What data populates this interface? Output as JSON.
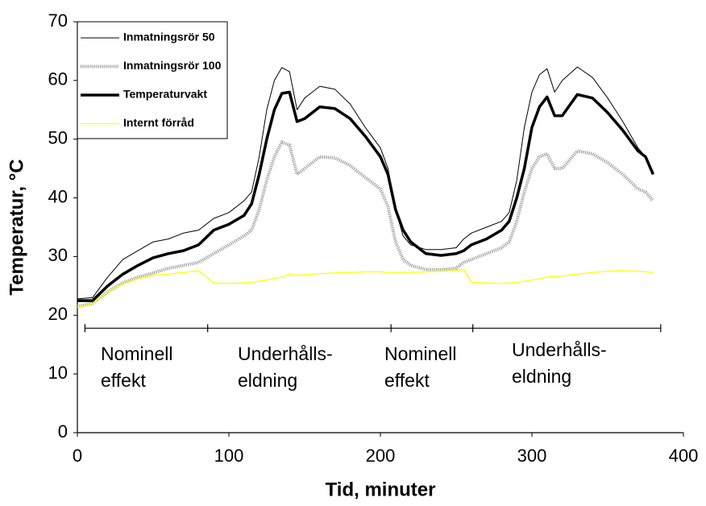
{
  "chart_data": {
    "type": "line",
    "x_label": "Tid, minuter",
    "y_label": "Temperatur, °C",
    "x": [
      0,
      10,
      20,
      30,
      40,
      50,
      60,
      70,
      80,
      90,
      100,
      110,
      115,
      120,
      125,
      130,
      135,
      140,
      145,
      150,
      160,
      170,
      180,
      190,
      200,
      205,
      210,
      215,
      220,
      230,
      240,
      250,
      255,
      260,
      270,
      280,
      285,
      290,
      295,
      300,
      305,
      310,
      315,
      320,
      330,
      340,
      350,
      360,
      370,
      375,
      380
    ],
    "series": [
      {
        "name": "Inmatningsrör 50",
        "color": "#000000",
        "values": [
          22.8,
          23,
          26.5,
          29.5,
          31,
          32.5,
          33,
          34,
          34.5,
          36.5,
          37.5,
          39.5,
          41,
          47,
          55,
          60,
          62.2,
          61.5,
          55,
          57,
          59,
          58.5,
          56,
          52,
          48.5,
          45,
          38,
          33.5,
          32,
          31.2,
          31.2,
          31.5,
          33,
          34,
          35,
          36,
          37.5,
          43,
          52,
          58,
          61,
          62,
          58,
          60,
          62.3,
          60.5,
          57,
          53,
          48.5,
          47,
          44.5
        ]
      },
      {
        "name": "Inmatningsrör 100",
        "color": "#a0a0a0",
        "values": [
          21.5,
          22,
          24,
          25.5,
          26.5,
          27.2,
          28,
          28.5,
          29,
          30.5,
          32,
          33.5,
          34.5,
          38,
          43,
          47,
          49.5,
          49,
          44,
          45,
          47,
          46.8,
          45.5,
          43.5,
          41.5,
          38.5,
          32.5,
          29.5,
          28.5,
          27.8,
          27.8,
          28,
          29,
          29.5,
          30.5,
          31.5,
          32.5,
          36,
          41,
          45,
          47,
          47.5,
          45,
          45,
          48,
          47.5,
          46,
          44,
          41.5,
          41,
          39.5
        ]
      },
      {
        "name": "Temperaturvakt",
        "color": "#000000",
        "values": [
          22.5,
          22.5,
          25,
          27,
          28.5,
          29.8,
          30.5,
          31,
          32,
          34.5,
          35.5,
          37,
          39,
          44,
          50,
          55,
          57.8,
          58,
          53,
          53.5,
          55.5,
          55.2,
          53.5,
          50.5,
          47,
          44,
          38,
          34.5,
          32.5,
          30.5,
          30.2,
          30.5,
          31,
          32,
          33,
          34.5,
          36,
          40,
          45,
          52,
          55.5,
          57.2,
          54,
          54,
          57.6,
          57,
          54.5,
          51.5,
          48,
          47,
          44
        ]
      },
      {
        "name": "Internt förråd",
        "color": "#ffff00",
        "values": [
          21.3,
          22,
          24,
          25.3,
          26.2,
          26.8,
          27,
          27.3,
          27.6,
          25.5,
          25.4,
          25.5,
          25.6,
          25.8,
          26,
          26.3,
          26.5,
          27,
          26.8,
          26.9,
          27.1,
          27.2,
          27.3,
          27.4,
          27.4,
          27.3,
          27.3,
          27.3,
          27.3,
          27.4,
          27.5,
          27.6,
          27.8,
          25.6,
          25.5,
          25.4,
          25.5,
          25.6,
          25.8,
          26,
          26.2,
          26.5,
          26.6,
          26.7,
          27,
          27.3,
          27.5,
          27.6,
          27.5,
          27.4,
          27.3
        ]
      }
    ],
    "xlim": [
      0,
      400
    ],
    "xticks": [
      0,
      100,
      200,
      300,
      400
    ],
    "ylim": [
      0,
      70
    ],
    "yticks": [
      0,
      10,
      20,
      30,
      40,
      50,
      60,
      70
    ],
    "legend": "upper left",
    "phase_boundaries": [
      5,
      86,
      207,
      261,
      385
    ],
    "phase_line_y": 17.8,
    "annotations": [
      [
        "Nominell",
        "effekt"
      ],
      [
        "Underhålls-",
        "eldning"
      ],
      [
        "Nominell",
        "effekt"
      ],
      [
        "Underhålls-",
        "eldning"
      ]
    ]
  }
}
